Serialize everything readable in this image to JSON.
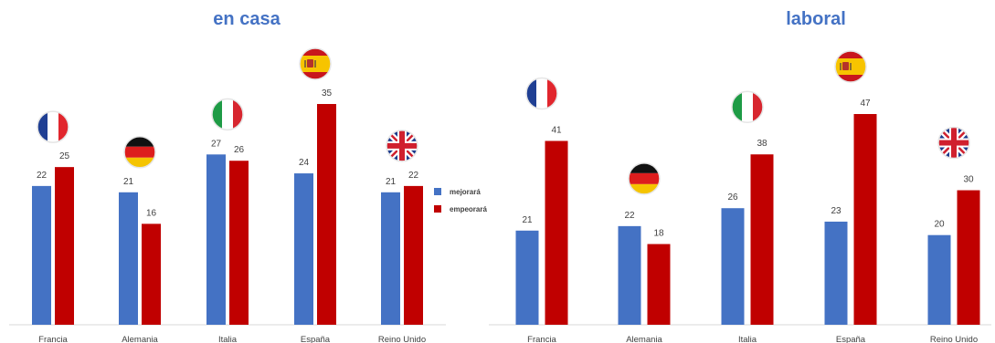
{
  "colors": {
    "mejorara": "#4472C4",
    "empeorara": "#C00000",
    "title": "#4472C4",
    "axis": "#D9D9D9",
    "text": "#404040"
  },
  "legend": {
    "mejorara": "mejorará",
    "empeorara": "empeorará"
  },
  "chart_data": [
    {
      "type": "bar",
      "title": "en casa",
      "categories": [
        "Francia",
        "Alemania",
        "Italia",
        "España",
        "Reino Unido"
      ],
      "flags": [
        "france-flag-icon",
        "germany-flag-icon",
        "italy-flag-icon",
        "spain-flag-icon",
        "uk-flag-icon"
      ],
      "series": [
        {
          "name": "mejorará",
          "values": [
            22,
            21,
            27,
            24,
            21
          ]
        },
        {
          "name": "empeorará",
          "values": [
            25,
            16,
            26,
            35,
            22
          ]
        }
      ],
      "ylim": [
        0,
        35
      ],
      "grid": false,
      "legend_position": "right"
    },
    {
      "type": "bar",
      "title": "laboral",
      "categories": [
        "Francia",
        "Alemania",
        "Italia",
        "España",
        "Reino Unido"
      ],
      "flags": [
        "france-flag-icon",
        "germany-flag-icon",
        "italy-flag-icon",
        "spain-flag-icon",
        "uk-flag-icon"
      ],
      "series": [
        {
          "name": "mejorará",
          "values": [
            21,
            22,
            26,
            23,
            20
          ]
        },
        {
          "name": "empeorará",
          "values": [
            41,
            18,
            38,
            47,
            30
          ]
        }
      ],
      "ylim": [
        0,
        47
      ],
      "grid": false,
      "legend_position": "none"
    }
  ]
}
